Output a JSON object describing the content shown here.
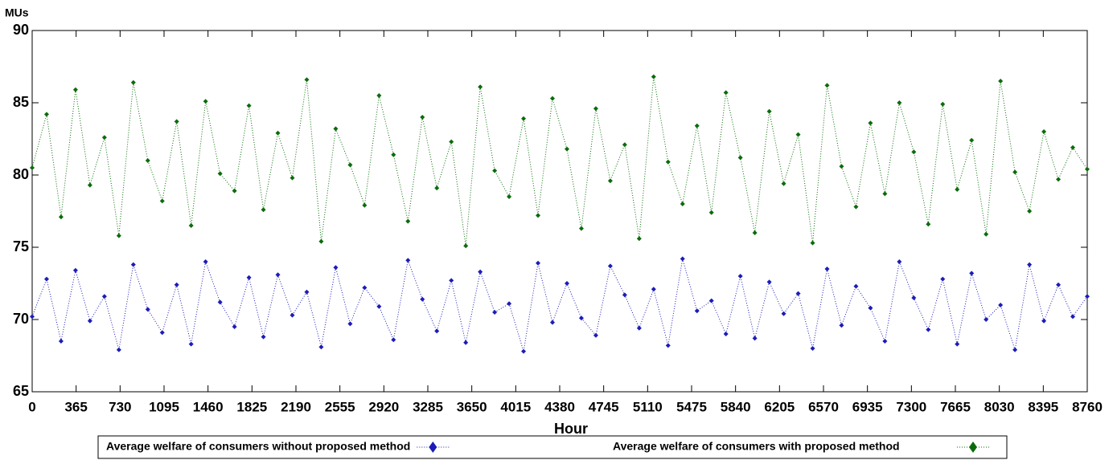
{
  "chart_data": {
    "type": "line",
    "y_label": "MUs",
    "x_label": "Hour",
    "x": [
      0,
      120,
      240,
      360,
      480,
      600,
      720,
      840,
      960,
      1080,
      1200,
      1320,
      1440,
      1560,
      1680,
      1800,
      1920,
      2040,
      2160,
      2280,
      2400,
      2520,
      2640,
      2760,
      2880,
      3000,
      3120,
      3240,
      3360,
      3480,
      3600,
      3720,
      3840,
      3960,
      4080,
      4200,
      4320,
      4440,
      4560,
      4680,
      4800,
      4920,
      5040,
      5160,
      5280,
      5400,
      5520,
      5640,
      5760,
      5880,
      6000,
      6120,
      6240,
      6360,
      6480,
      6600,
      6720,
      6840,
      6960,
      7080,
      7200,
      7320,
      7440,
      7560,
      7680,
      7800,
      7920,
      8040,
      8160,
      8280,
      8400,
      8520,
      8640,
      8760
    ],
    "series": [
      {
        "name": "Average welfare of consumers without proposed method",
        "color": "#1c1cb8",
        "values": [
          70.2,
          72.8,
          68.5,
          73.4,
          69.9,
          71.6,
          67.9,
          73.8,
          70.7,
          69.1,
          72.4,
          68.3,
          74.0,
          71.2,
          69.5,
          72.9,
          68.8,
          73.1,
          70.3,
          71.9,
          68.1,
          73.6,
          69.7,
          72.2,
          70.9,
          68.6,
          74.1,
          71.4,
          69.2,
          72.7,
          68.4,
          73.3,
          70.5,
          71.1,
          67.8,
          73.9,
          69.8,
          72.5,
          70.1,
          68.9,
          73.7,
          71.7,
          69.4,
          72.1,
          68.2,
          74.2,
          70.6,
          71.3,
          69.0,
          73.0,
          68.7,
          72.6,
          70.4,
          71.8,
          68.0,
          73.5,
          69.6,
          72.3,
          70.8,
          68.5,
          74.0,
          71.5,
          69.3,
          72.8,
          68.3,
          73.2,
          70.0,
          71.0,
          67.9,
          73.8,
          69.9,
          72.4,
          70.2,
          71.6
        ]
      },
      {
        "name": "Average welfare of consumers with proposed method",
        "color": "#0b6b0b",
        "values": [
          80.5,
          84.2,
          77.1,
          85.9,
          79.3,
          82.6,
          75.8,
          86.4,
          81.0,
          78.2,
          83.7,
          76.5,
          85.1,
          80.1,
          78.9,
          84.8,
          77.6,
          82.9,
          79.8,
          86.6,
          75.4,
          83.2,
          80.7,
          77.9,
          85.5,
          81.4,
          76.8,
          84.0,
          79.1,
          82.3,
          75.1,
          86.1,
          80.3,
          78.5,
          83.9,
          77.2,
          85.3,
          81.8,
          76.3,
          84.6,
          79.6,
          82.1,
          75.6,
          86.8,
          80.9,
          78.0,
          83.4,
          77.4,
          85.7,
          81.2,
          76.0,
          84.4,
          79.4,
          82.8,
          75.3,
          86.2,
          80.6,
          77.8,
          83.6,
          78.7,
          85.0,
          81.6,
          76.6,
          84.9,
          79.0,
          82.4,
          75.9,
          86.5,
          80.2,
          77.5,
          83.0,
          79.7,
          81.9,
          80.4
        ]
      }
    ],
    "xlim": [
      0,
      8760
    ],
    "xticks": [
      0,
      365,
      730,
      1095,
      1460,
      1825,
      2190,
      2555,
      2920,
      3285,
      3650,
      4015,
      4380,
      4745,
      5110,
      5475,
      5840,
      6205,
      6570,
      6935,
      7300,
      7665,
      8030,
      8395,
      8760
    ],
    "ylim": [
      65,
      90
    ],
    "yticks": [
      65,
      70,
      75,
      80,
      85,
      90
    ],
    "grid": false,
    "legend": "bottom"
  }
}
